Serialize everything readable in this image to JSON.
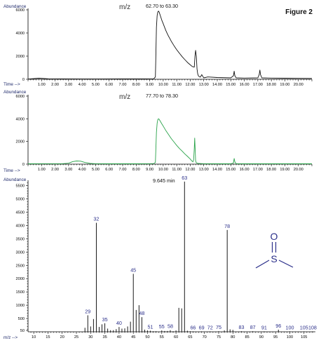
{
  "figure": {
    "label": "Figure 2"
  },
  "chart_data": [
    {
      "type": "line",
      "id": "chrom1",
      "ylabel": "Abundance",
      "xlabel": "Time -->",
      "mz_label": "m/z",
      "range_label": "62.70 to 63.30",
      "color": "#111111",
      "xlim": [
        0,
        21
      ],
      "ylim": [
        0,
        6000
      ],
      "yticks": [
        0,
        2000,
        4000,
        6000
      ],
      "xticks": [
        "1.00",
        "2.00",
        "3.00",
        "4.00",
        "5.00",
        "6.00",
        "7.00",
        "8.00",
        "9.00",
        "10.00",
        "11.00",
        "12.00",
        "13.00",
        "14.00",
        "15.00",
        "16.00",
        "17.00",
        "18.00",
        "19.00",
        "20.00"
      ],
      "series": [
        {
          "x": [
            0.0,
            0.8,
            1.5,
            2.5,
            4.0,
            5.5,
            7.0,
            8.5,
            9.3,
            9.42,
            9.45,
            9.5,
            9.55,
            9.6,
            9.65,
            9.7,
            9.8,
            9.9,
            10.0,
            10.1,
            10.2,
            10.3,
            10.4,
            10.5,
            10.6,
            10.8,
            11.0,
            11.2,
            11.4,
            11.6,
            11.8,
            12.0,
            12.15,
            12.3,
            12.35,
            12.4,
            12.45,
            12.5,
            12.55,
            12.6,
            12.65,
            12.7,
            12.75,
            12.85,
            13.0,
            13.3,
            14.0,
            15.0,
            15.2,
            15.25,
            15.3,
            15.4,
            16.0,
            17.0,
            17.1,
            17.15,
            17.2,
            17.3,
            18.0,
            19.0,
            20.0,
            21.0
          ],
          "y": [
            20,
            90,
            40,
            30,
            25,
            25,
            30,
            30,
            40,
            200,
            1500,
            4500,
            5500,
            5800,
            5900,
            5800,
            5450,
            5100,
            4800,
            4500,
            4200,
            3950,
            3700,
            3500,
            3280,
            2900,
            2550,
            2250,
            1950,
            1700,
            1450,
            1250,
            1100,
            1050,
            2000,
            2500,
            2000,
            900,
            500,
            300,
            250,
            200,
            180,
            400,
            120,
            200,
            150,
            120,
            300,
            700,
            300,
            120,
            100,
            120,
            400,
            800,
            400,
            120,
            100,
            90,
            80,
            70
          ]
        }
      ]
    },
    {
      "type": "line",
      "id": "chrom2",
      "ylabel": "Abundance",
      "xlabel": "Time -->",
      "mz_label": "m/z",
      "range_label": "77.70 to 78.30",
      "color": "#2aa34a",
      "xlim": [
        0,
        21
      ],
      "ylim": [
        0,
        6000
      ],
      "yticks": [
        0,
        2000,
        4000,
        6000
      ],
      "xticks": [
        "1.00",
        "2.00",
        "3.00",
        "4.00",
        "5.00",
        "6.00",
        "7.00",
        "8.00",
        "9.00",
        "10.00",
        "11.00",
        "12.00",
        "13.00",
        "14.00",
        "15.00",
        "16.00",
        "17.00",
        "18.00",
        "19.00",
        "20.00"
      ],
      "series": [
        {
          "x": [
            0.0,
            1.0,
            2.5,
            3.0,
            3.3,
            3.6,
            3.9,
            4.2,
            4.6,
            5.0,
            6.0,
            7.0,
            8.0,
            9.0,
            9.3,
            9.42,
            9.45,
            9.5,
            9.55,
            9.6,
            9.65,
            9.7,
            9.8,
            9.9,
            10.0,
            10.2,
            10.4,
            10.6,
            10.8,
            11.0,
            11.2,
            11.4,
            11.6,
            11.8,
            12.0,
            12.1,
            12.2,
            12.25,
            12.3,
            12.33,
            12.36,
            12.4,
            12.45,
            12.5,
            12.6,
            13.0,
            14.0,
            15.0,
            15.2,
            15.25,
            15.3,
            15.4,
            16.0,
            17.0,
            18.0,
            19.0,
            20.0,
            21.0
          ],
          "y": [
            30,
            40,
            40,
            80,
            220,
            280,
            260,
            150,
            60,
            40,
            30,
            30,
            30,
            40,
            50,
            150,
            1000,
            2800,
            3600,
            3900,
            4000,
            3950,
            3750,
            3550,
            3350,
            2950,
            2600,
            2250,
            1950,
            1650,
            1380,
            1150,
            900,
            680,
            450,
            300,
            200,
            400,
            1400,
            2300,
            1400,
            300,
            120,
            80,
            60,
            40,
            30,
            30,
            100,
            500,
            200,
            40,
            30,
            30,
            30,
            30,
            30,
            30
          ]
        }
      ]
    },
    {
      "type": "bar",
      "id": "spectrum",
      "ylabel": "Abundance",
      "xlabel": "m/z -->",
      "time_label": "9.645 min",
      "color": "#000000",
      "xlim": [
        8,
        109
      ],
      "ylim": [
        0,
        5700
      ],
      "yticks": [
        50,
        500,
        1000,
        1500,
        2000,
        2500,
        3000,
        3500,
        4000,
        4500,
        5000,
        5500
      ],
      "xticks": [
        10,
        15,
        20,
        25,
        30,
        35,
        40,
        45,
        50,
        55,
        60,
        65,
        70,
        75,
        80,
        85,
        90,
        95,
        100,
        105
      ],
      "peaks": [
        {
          "x": 28,
          "y": 150
        },
        {
          "x": 29,
          "y": 620
        },
        {
          "x": 30,
          "y": 200
        },
        {
          "x": 31,
          "y": 480
        },
        {
          "x": 32,
          "y": 4100
        },
        {
          "x": 33,
          "y": 180
        },
        {
          "x": 34,
          "y": 280
        },
        {
          "x": 35,
          "y": 320
        },
        {
          "x": 36,
          "y": 120
        },
        {
          "x": 37,
          "y": 60
        },
        {
          "x": 38,
          "y": 60
        },
        {
          "x": 39,
          "y": 100
        },
        {
          "x": 40,
          "y": 180
        },
        {
          "x": 41,
          "y": 120
        },
        {
          "x": 42,
          "y": 130
        },
        {
          "x": 43,
          "y": 200
        },
        {
          "x": 44,
          "y": 380
        },
        {
          "x": 45,
          "y": 2180
        },
        {
          "x": 46,
          "y": 820
        },
        {
          "x": 47,
          "y": 1000
        },
        {
          "x": 48,
          "y": 550
        },
        {
          "x": 49,
          "y": 80
        },
        {
          "x": 50,
          "y": 50
        },
        {
          "x": 51,
          "y": 40
        },
        {
          "x": 52,
          "y": 20
        },
        {
          "x": 53,
          "y": 20
        },
        {
          "x": 55,
          "y": 50
        },
        {
          "x": 56,
          "y": 30
        },
        {
          "x": 57,
          "y": 30
        },
        {
          "x": 58,
          "y": 60
        },
        {
          "x": 59,
          "y": 20
        },
        {
          "x": 60,
          "y": 50
        },
        {
          "x": 61,
          "y": 900
        },
        {
          "x": 62,
          "y": 880
        },
        {
          "x": 63,
          "y": 5650
        },
        {
          "x": 64,
          "y": 40
        },
        {
          "x": 65,
          "y": 20
        },
        {
          "x": 66,
          "y": 15
        },
        {
          "x": 69,
          "y": 15
        },
        {
          "x": 72,
          "y": 15
        },
        {
          "x": 75,
          "y": 20
        },
        {
          "x": 77,
          "y": 50
        },
        {
          "x": 78,
          "y": 3830
        },
        {
          "x": 79,
          "y": 90
        },
        {
          "x": 80,
          "y": 70
        },
        {
          "x": 83,
          "y": 20
        },
        {
          "x": 87,
          "y": 20
        },
        {
          "x": 91,
          "y": 15
        },
        {
          "x": 96,
          "y": 80
        },
        {
          "x": 100,
          "y": 15
        },
        {
          "x": 105,
          "y": 15
        },
        {
          "x": 108,
          "y": 15
        }
      ],
      "labels": [
        {
          "text": "29",
          "x": 29,
          "y": 620
        },
        {
          "text": "32",
          "x": 32,
          "y": 4100
        },
        {
          "text": "35",
          "x": 35,
          "y": 320
        },
        {
          "text": "40",
          "x": 40,
          "y": 180
        },
        {
          "text": "45",
          "x": 45,
          "y": 2180
        },
        {
          "text": "48",
          "x": 48,
          "y": 550
        },
        {
          "text": "51",
          "x": 51,
          "y": 40
        },
        {
          "text": "55",
          "x": 55,
          "y": 50
        },
        {
          "text": "58",
          "x": 58,
          "y": 60
        },
        {
          "text": "63",
          "x": 63,
          "y": 5650
        },
        {
          "text": "66",
          "x": 66,
          "y": 15
        },
        {
          "text": "69",
          "x": 69,
          "y": 15
        },
        {
          "text": "72",
          "x": 72,
          "y": 15
        },
        {
          "text": "75",
          "x": 75,
          "y": 20
        },
        {
          "text": "78",
          "x": 78,
          "y": 3830
        },
        {
          "text": "83",
          "x": 83,
          "y": 20
        },
        {
          "text": "87",
          "x": 87,
          "y": 20
        },
        {
          "text": "91",
          "x": 91,
          "y": 15
        },
        {
          "text": "96",
          "x": 96,
          "y": 80
        },
        {
          "text": "100",
          "x": 100,
          "y": 15
        },
        {
          "text": "105",
          "x": 105,
          "y": 15
        },
        {
          "text": "108",
          "x": 108,
          "y": 15
        }
      ],
      "structure": {
        "atom": "S",
        "atom_top": "O"
      }
    }
  ]
}
